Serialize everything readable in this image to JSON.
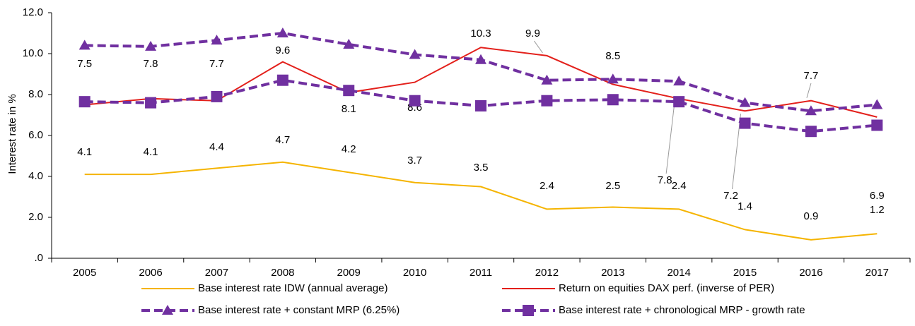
{
  "chart_data": {
    "type": "line",
    "y_axis_label": "Interest rate  in %",
    "categories": [
      "2005",
      "2006",
      "2007",
      "2008",
      "2009",
      "2010",
      "2011",
      "2012",
      "2013",
      "2014",
      "2015",
      "2016",
      "2017"
    ],
    "ylim": [
      0,
      12
    ],
    "yticks": [
      {
        "value": 0,
        "label": ".0"
      },
      {
        "value": 2,
        "label": "2.0"
      },
      {
        "value": 4,
        "label": "4.0"
      },
      {
        "value": 6,
        "label": "6.0"
      },
      {
        "value": 8,
        "label": "8.0"
      },
      {
        "value": 10,
        "label": "10.0"
      },
      {
        "value": 12,
        "label": "12.0"
      }
    ],
    "series": [
      {
        "name": "Base interest rate IDW (annual average)",
        "color": "#f5b400",
        "style": "solid",
        "marker": "none",
        "data_labels": true,
        "values": [
          4.1,
          4.1,
          4.4,
          4.7,
          4.2,
          3.7,
          3.5,
          2.4,
          2.5,
          2.4,
          1.4,
          0.9,
          1.2
        ]
      },
      {
        "name": "Return on equities DAX perf. (inverse of PER)",
        "color": "#e3201b",
        "style": "solid",
        "marker": "none",
        "data_labels": true,
        "values": [
          7.5,
          7.8,
          7.7,
          9.6,
          8.1,
          8.6,
          10.3,
          9.9,
          8.5,
          7.8,
          7.2,
          7.7,
          6.9
        ]
      },
      {
        "name": "Base interest rate + constant MRP (6.25%)",
        "color": "#7030a0",
        "style": "dashed",
        "marker": "triangle",
        "data_labels": false,
        "values": [
          10.4,
          10.35,
          10.65,
          11.0,
          10.45,
          9.95,
          9.7,
          8.7,
          8.75,
          8.65,
          7.6,
          7.2,
          7.5
        ]
      },
      {
        "name": "Base interest rate + chronological MRP - growth rate",
        "color": "#7030a0",
        "style": "dashed",
        "marker": "square",
        "data_labels": false,
        "values": [
          7.65,
          7.6,
          7.9,
          8.7,
          8.2,
          7.7,
          7.45,
          7.7,
          7.75,
          7.65,
          6.6,
          6.2,
          6.5
        ]
      }
    ]
  }
}
